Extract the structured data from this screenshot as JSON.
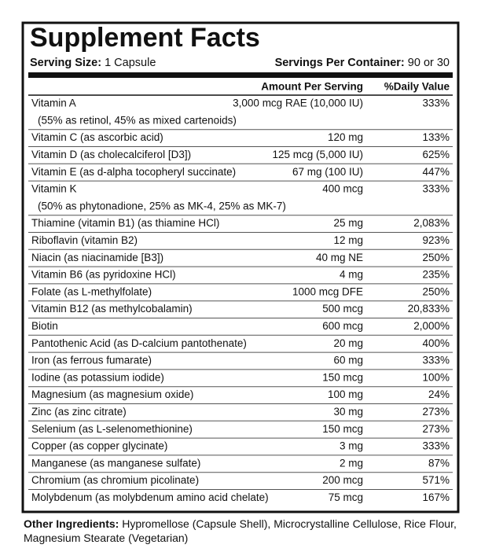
{
  "header": {
    "title": "Supplement Facts",
    "serving_size_label": "Serving Size:",
    "serving_size": "1 Capsule",
    "servings_label": "Servings Per Container:",
    "servings": "90 or 30"
  },
  "table": {
    "columns": [
      "Amount Per Serving",
      "%Daily Value"
    ],
    "rows": [
      {
        "name": "Vitamin A",
        "amount": "3,000 mcg RAE (10,000 IU)",
        "dv": "333%",
        "note": "(55% as retinol, 45% as mixed cartenoids)"
      },
      {
        "name": "Vitamin C (as ascorbic acid)",
        "amount": "120 mg",
        "dv": "133%"
      },
      {
        "name": "Vitamin D (as cholecalciferol [D3])",
        "amount": "125 mcg (5,000 IU)",
        "dv": "625%"
      },
      {
        "name": "Vitamin E (as d-alpha tocopheryl succinate)",
        "amount": "67 mg (100 IU)",
        "dv": "447%"
      },
      {
        "name": "Vitamin K",
        "amount": "400 mcg",
        "dv": "333%",
        "note": "(50% as phytonadione, 25% as MK-4, 25% as MK-7)"
      },
      {
        "name": "Thiamine (vitamin B1) (as thiamine HCl)",
        "amount": "25 mg",
        "dv": "2,083%"
      },
      {
        "name": "Riboflavin (vitamin B2)",
        "amount": "12 mg",
        "dv": "923%"
      },
      {
        "name": "Niacin (as niacinamide [B3])",
        "amount": "40 mg NE",
        "dv": "250%"
      },
      {
        "name": "Vitamin B6 (as pyridoxine HCl)",
        "amount": "4 mg",
        "dv": "235%"
      },
      {
        "name": "Folate (as L-methylfolate)",
        "amount": "1000 mcg DFE",
        "dv": "250%"
      },
      {
        "name": "Vitamin B12 (as methylcobalamin)",
        "amount": "500 mcg",
        "dv": "20,833%"
      },
      {
        "name": "Biotin",
        "amount": "600 mcg",
        "dv": "2,000%"
      },
      {
        "name": "Pantothenic Acid (as D-calcium pantothenate)",
        "amount": "20 mg",
        "dv": "400%"
      },
      {
        "name": "Iron (as ferrous fumarate)",
        "amount": "60 mg",
        "dv": "333%"
      },
      {
        "name": "Iodine (as potassium iodide)",
        "amount": "150 mcg",
        "dv": "100%"
      },
      {
        "name": "Magnesium (as magnesium oxide)",
        "amount": "100 mg",
        "dv": "24%"
      },
      {
        "name": "Zinc (as zinc citrate)",
        "amount": "30 mg",
        "dv": "273%"
      },
      {
        "name": "Selenium (as L-selenomethionine)",
        "amount": "150 mcg",
        "dv": "273%"
      },
      {
        "name": "Copper (as copper glycinate)",
        "amount": "3 mg",
        "dv": "333%"
      },
      {
        "name": "Manganese (as manganese sulfate)",
        "amount": "2 mg",
        "dv": "87%"
      },
      {
        "name": "Chromium (as chromium picolinate)",
        "amount": "200 mcg",
        "dv": "571%"
      },
      {
        "name": "Molybdenum (as molybdenum amino acid chelate)",
        "amount": "75 mcg",
        "dv": "167%"
      }
    ]
  },
  "other_ingredients": {
    "label": "Other Ingredients:",
    "text": "Hypromellose (Capsule Shell), Microcrystalline Cellulose, Rice Flour, Magnesium Stearate (Vegetarian)"
  }
}
